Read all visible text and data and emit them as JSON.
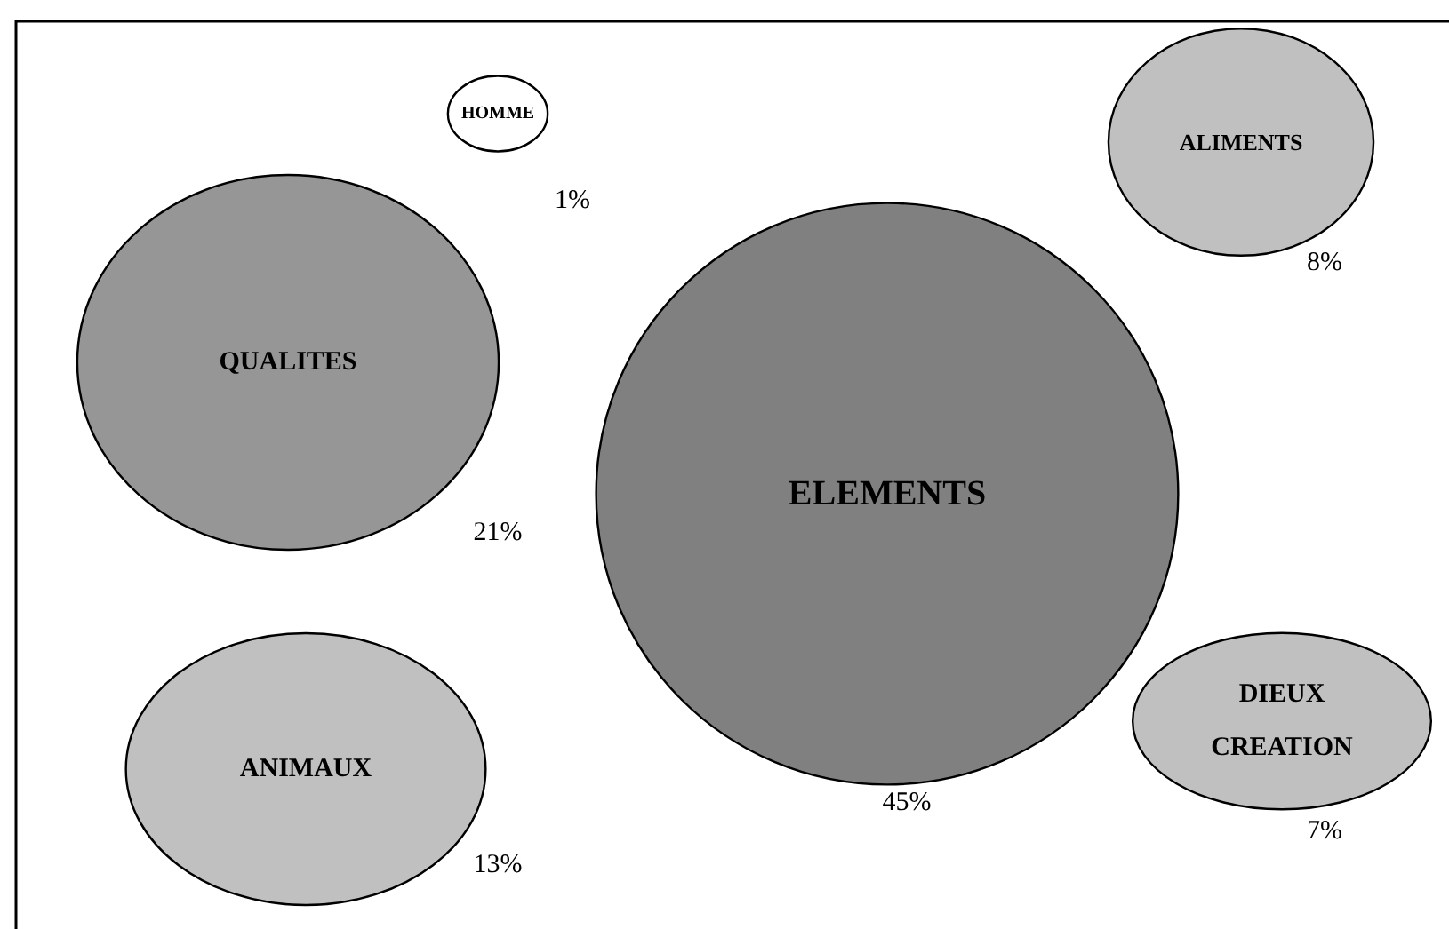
{
  "chart_data": {
    "type": "other",
    "categories": [
      "HOMME",
      "ALIMENTS",
      "QUALITES",
      "ELEMENTS",
      "DIEUX CREATION",
      "ANIMAUX"
    ],
    "values": [
      1,
      8,
      21,
      45,
      7,
      13
    ],
    "value_labels": [
      "1%",
      "8%",
      "21%",
      "45%",
      "7%",
      "13%"
    ],
    "colors": [
      "#ffffff",
      "#c0c0c0",
      "#969696",
      "#808080",
      "#c0c0c0",
      "#c0c0c0"
    ]
  }
}
